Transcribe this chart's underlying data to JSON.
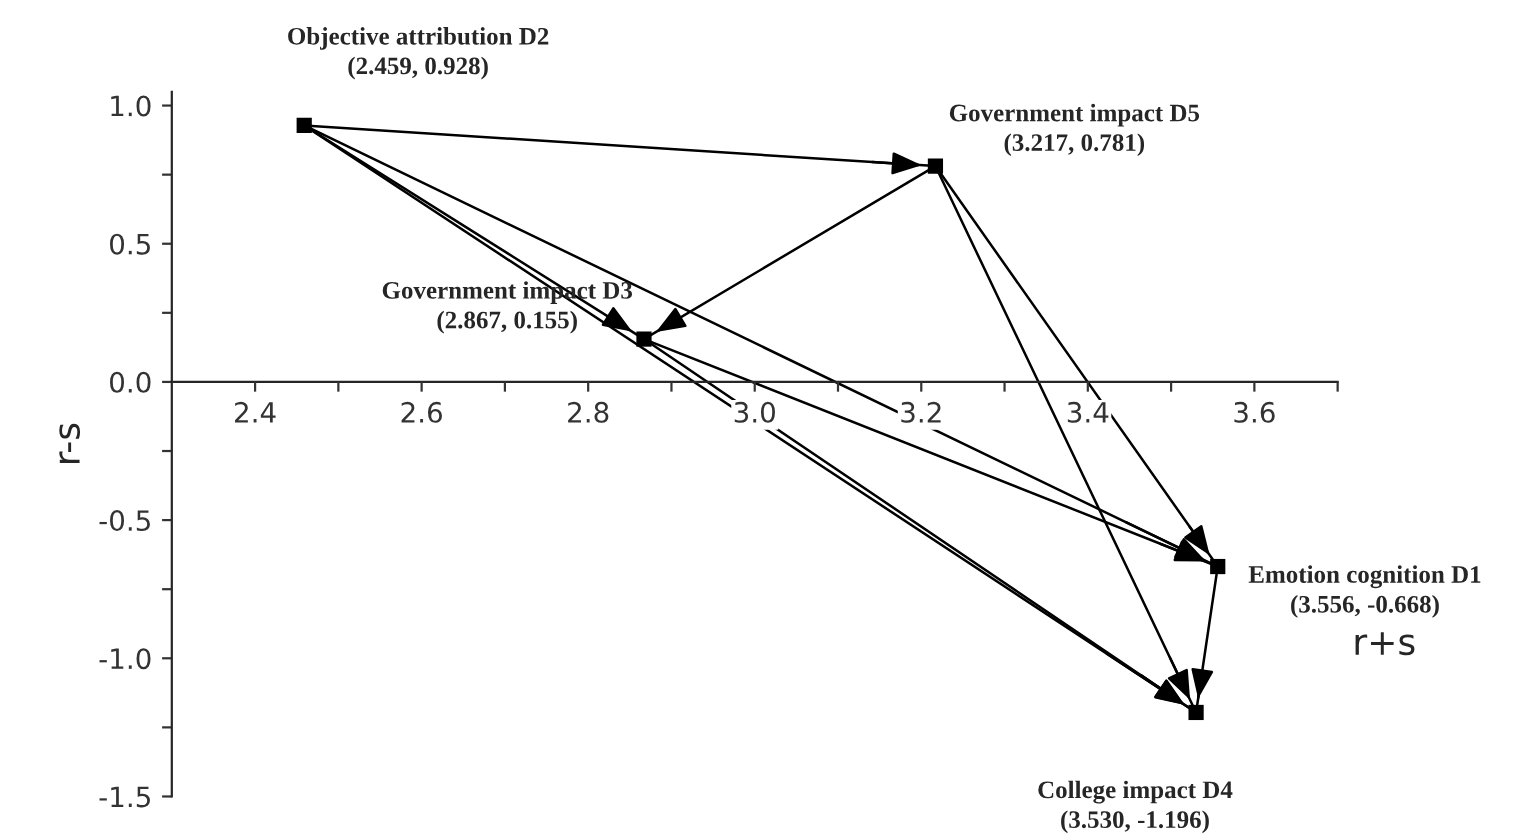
{
  "chart_data": {
    "type": "scatter",
    "xlabel": "r+s",
    "ylabel": "r-s",
    "xlim": [
      2.3,
      3.7
    ],
    "ylim": [
      -1.5,
      1.05
    ],
    "xticks": [
      2.4,
      {
        "value": 2.5,
        "label": null
      },
      2.6,
      {
        "value": 2.7,
        "label": null
      },
      2.8,
      {
        "value": 2.9,
        "label": null
      },
      {
        "value": 3.0,
        "label": "3.0"
      },
      {
        "value": 3.1,
        "label": null
      },
      3.2,
      {
        "value": 3.3,
        "label": null
      },
      3.4,
      {
        "value": 3.5,
        "label": null
      },
      3.6,
      {
        "value": 3.7,
        "label": null
      }
    ],
    "yticks": [
      -1.5,
      {
        "value": -1.25,
        "label": null
      },
      {
        "value": -1.0,
        "label": "-1.0"
      },
      {
        "value": -0.75,
        "label": null
      },
      -0.5,
      {
        "value": -0.25,
        "label": null
      },
      {
        "value": 0.0,
        "label": "0.0"
      },
      {
        "value": 0.25,
        "label": null
      },
      0.5,
      {
        "value": 0.75,
        "label": null
      },
      {
        "value": 1.0,
        "label": "1.0"
      }
    ],
    "grid": false,
    "series": [
      {
        "marker": "square",
        "color": "#000000",
        "x": [
          2.459,
          3.217,
          2.867,
          3.556,
          3.53
        ],
        "values": [
          0.928,
          0.781,
          0.155,
          -0.668,
          -1.196
        ]
      },
      {
        "type": "line",
        "color": "#000000",
        "x": [
          2.459,
          3.217
        ],
        "values": [
          0.928,
          0.781
        ]
      },
      {
        "type": "line",
        "color": "#000000",
        "x": [
          2.459,
          2.867
        ],
        "values": [
          0.928,
          0.155
        ]
      },
      {
        "type": "line",
        "color": "#000000",
        "x": [
          2.459,
          3.556
        ],
        "values": [
          0.928,
          -0.668
        ]
      },
      {
        "type": "line",
        "color": "#000000",
        "x": [
          2.459,
          3.53
        ],
        "values": [
          0.928,
          -1.196
        ]
      },
      {
        "type": "line",
        "color": "#000000",
        "x": [
          3.217,
          2.867
        ],
        "values": [
          0.781,
          0.155
        ]
      },
      {
        "type": "line",
        "color": "#000000",
        "x": [
          3.217,
          3.556
        ],
        "values": [
          0.781,
          -0.668
        ]
      },
      {
        "type": "line",
        "color": "#000000",
        "x": [
          3.217,
          3.53
        ],
        "values": [
          0.781,
          -1.196
        ]
      },
      {
        "type": "line",
        "color": "#000000",
        "x": [
          2.867,
          3.556
        ],
        "values": [
          0.155,
          -0.668
        ]
      },
      {
        "type": "line",
        "color": "#000000",
        "x": [
          2.867,
          3.53
        ],
        "values": [
          0.155,
          -1.196
        ]
      },
      {
        "type": "line",
        "color": "#000000",
        "x": [
          3.556,
          3.53
        ],
        "values": [
          -0.668,
          -1.196
        ]
      }
    ],
    "annotations": [
      {
        "text": "Objective attribution D2\n(2.459, 0.928)",
        "x": 2.459,
        "y": 0.928
      },
      {
        "text": "Government impact D5\n(3.217, 0.781)",
        "x": 3.217,
        "y": 0.781
      },
      {
        "text": "Government impact D3\n(2.867, 0.155)",
        "x": 2.867,
        "y": 0.155
      },
      {
        "text": "Emotion cognition D1\n(3.556, -0.668)",
        "x": 3.556,
        "y": -0.668
      },
      {
        "text": "College impact D4\n(3.530, -1.196)",
        "x": 3.53,
        "y": -1.196
      }
    ]
  }
}
